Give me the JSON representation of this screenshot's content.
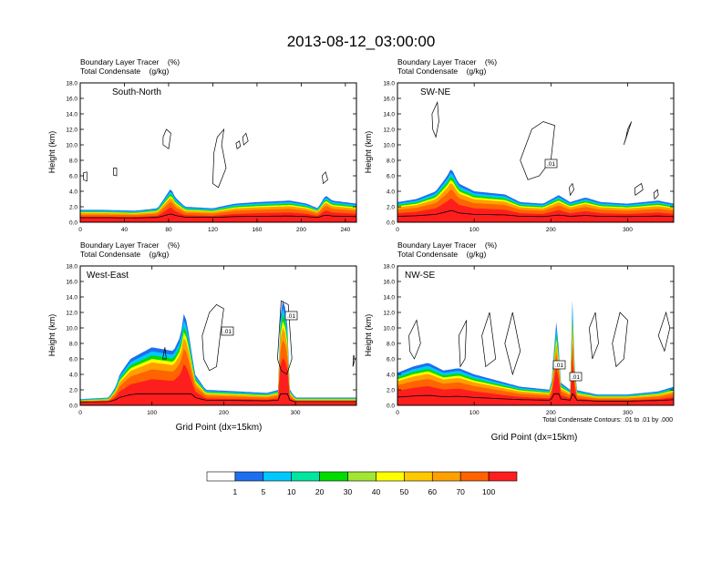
{
  "title": "2013-08-12_03:00:00",
  "panel_header": {
    "line1": "Boundary Layer Tracer    (%)",
    "line2": "Total Condensate    (g/kg)"
  },
  "ylabel": "Height (km)",
  "xlabel": "Grid Point (dx=15km)",
  "contour_note": "Total Condensate Contours: .01 to .01 by .000",
  "contour_label": ".01",
  "colorbar": {
    "colors": [
      "#ffffff",
      "#1e6ef0",
      "#00c8ff",
      "#00e6a0",
      "#00dc00",
      "#a0e632",
      "#ffff00",
      "#ffc800",
      "#ffa000",
      "#ff6400",
      "#ff1e1e"
    ],
    "labels": [
      "1",
      "5",
      "10",
      "20",
      "30",
      "40",
      "50",
      "60",
      "70",
      "100"
    ]
  },
  "chart_data": [
    {
      "type": "heatmap",
      "name": "South-North",
      "xlim": [
        0,
        250
      ],
      "ylim": [
        0,
        18
      ],
      "xticks": [
        "0",
        "40",
        "80",
        "120",
        "160",
        "200",
        "240"
      ],
      "yticks": [
        "0.0",
        "2.0",
        "4.0",
        "6.0",
        "8.0",
        "10.0",
        "12.0",
        "14.0",
        "16.0",
        "18.0"
      ],
      "tracer_top_km": [
        [
          0,
          1.6
        ],
        [
          20,
          1.6
        ],
        [
          50,
          1.5
        ],
        [
          70,
          1.8
        ],
        [
          78,
          3.5
        ],
        [
          82,
          4.4
        ],
        [
          86,
          3.2
        ],
        [
          95,
          2.0
        ],
        [
          120,
          1.8
        ],
        [
          140,
          2.4
        ],
        [
          160,
          2.6
        ],
        [
          190,
          2.8
        ],
        [
          205,
          2.4
        ],
        [
          215,
          1.8
        ],
        [
          222,
          3.5
        ],
        [
          228,
          2.8
        ],
        [
          250,
          2.4
        ]
      ],
      "contour_labels": []
    },
    {
      "type": "heatmap",
      "name": "SW-NE",
      "xlim": [
        0,
        360
      ],
      "ylim": [
        0,
        18
      ],
      "xticks": [
        "0",
        "100",
        "200",
        "300"
      ],
      "yticks": [
        "0.0",
        "2.0",
        "4.0",
        "6.0",
        "8.0",
        "10.0",
        "12.0",
        "14.0",
        "16.0",
        "18.0"
      ],
      "tracer_top_km": [
        [
          0,
          2.6
        ],
        [
          25,
          3.0
        ],
        [
          50,
          4.0
        ],
        [
          65,
          6.0
        ],
        [
          70,
          7.0
        ],
        [
          80,
          5.0
        ],
        [
          100,
          4.0
        ],
        [
          140,
          3.6
        ],
        [
          160,
          2.6
        ],
        [
          190,
          2.4
        ],
        [
          210,
          3.5
        ],
        [
          225,
          2.6
        ],
        [
          245,
          3.2
        ],
        [
          265,
          2.6
        ],
        [
          300,
          2.4
        ],
        [
          340,
          2.8
        ],
        [
          360,
          2.4
        ]
      ],
      "contour_labels": [
        ".01"
      ]
    },
    {
      "type": "heatmap",
      "name": "West-East",
      "xlim": [
        0,
        385
      ],
      "ylim": [
        0,
        18
      ],
      "xticks": [
        "0",
        "100",
        "200",
        "300"
      ],
      "yticks": [
        "0.0",
        "2.0",
        "4.0",
        "6.0",
        "8.0",
        "10.0",
        "12.0",
        "14.0",
        "16.0",
        "18.0"
      ],
      "tracer_top_km": [
        [
          0,
          0.8
        ],
        [
          40,
          1.0
        ],
        [
          50,
          2.5
        ],
        [
          55,
          4.0
        ],
        [
          70,
          6.0
        ],
        [
          100,
          7.5
        ],
        [
          130,
          7.0
        ],
        [
          140,
          9.0
        ],
        [
          145,
          12.2
        ],
        [
          150,
          10.0
        ],
        [
          160,
          4.0
        ],
        [
          175,
          2.0
        ],
        [
          220,
          1.8
        ],
        [
          260,
          1.6
        ],
        [
          276,
          2.0
        ],
        [
          280,
          14.2
        ],
        [
          288,
          12.0
        ],
        [
          292,
          2.0
        ],
        [
          300,
          1.0
        ],
        [
          385,
          1.0
        ]
      ],
      "contour_labels": [
        ".01",
        ".01"
      ]
    },
    {
      "type": "heatmap",
      "name": "NW-SE",
      "xlim": [
        0,
        360
      ],
      "ylim": [
        0,
        18
      ],
      "xticks": [
        "0",
        "100",
        "200",
        "300"
      ],
      "yticks": [
        "0.0",
        "2.0",
        "4.0",
        "6.0",
        "8.0",
        "10.0",
        "12.0",
        "14.0",
        "16.0",
        "18.0"
      ],
      "tracer_top_km": [
        [
          0,
          4.2
        ],
        [
          20,
          5.0
        ],
        [
          40,
          5.5
        ],
        [
          60,
          4.5
        ],
        [
          80,
          4.8
        ],
        [
          100,
          4.0
        ],
        [
          130,
          3.2
        ],
        [
          160,
          2.4
        ],
        [
          200,
          2.0
        ],
        [
          208,
          12.0
        ],
        [
          212,
          3.0
        ],
        [
          225,
          2.0
        ],
        [
          228,
          13.5
        ],
        [
          232,
          2.0
        ],
        [
          260,
          1.4
        ],
        [
          300,
          1.4
        ],
        [
          340,
          1.8
        ],
        [
          360,
          2.4
        ]
      ],
      "contour_labels": [
        ".01",
        ".01"
      ]
    }
  ]
}
